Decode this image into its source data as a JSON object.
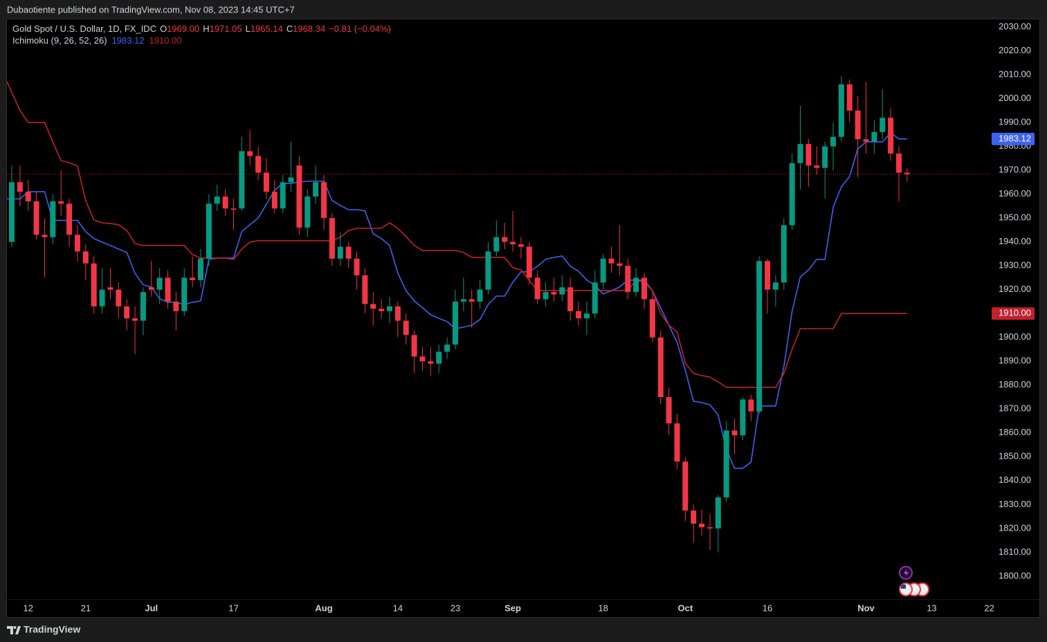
{
  "header": {
    "publisher": "Dubaotiente published on TradingView.com, Nov 08, 2023 14:45 UTC+7"
  },
  "footer": {
    "brand": "TradingView"
  },
  "chart_data": {
    "type": "candlestick",
    "symbol": "Gold Spot / U.S. Dollar, 1D, FX_IDC",
    "ohlc_legend": [
      {
        "key": "O",
        "value": "1969.00"
      },
      {
        "key": "H",
        "value": "1971.05"
      },
      {
        "key": "L",
        "value": "1965.14"
      },
      {
        "key": "C",
        "value": "1968.34"
      }
    ],
    "change": "−0.81 (−0.04%)",
    "up_color": "#089981",
    "down_color": "#f23645",
    "categories": [
      null,
      null,
      "12",
      null,
      null,
      null,
      null,
      null,
      null,
      "21",
      null,
      null,
      null,
      null,
      null,
      null,
      null,
      "Jul",
      null,
      null,
      null,
      null,
      null,
      null,
      null,
      null,
      null,
      "17",
      null,
      null,
      null,
      null,
      null,
      null,
      null,
      null,
      null,
      null,
      "Aug",
      null,
      null,
      null,
      null,
      null,
      null,
      null,
      null,
      "14",
      null,
      null,
      null,
      null,
      null,
      null,
      "23",
      null,
      null,
      null,
      null,
      null,
      null,
      "Sep",
      null,
      null,
      null,
      null,
      null,
      null,
      null,
      null,
      null,
      null,
      "18",
      null,
      null,
      null,
      null,
      null,
      null,
      null,
      null,
      null,
      "Oct",
      null,
      null,
      null,
      null,
      null,
      null,
      null,
      null,
      null,
      "16",
      null,
      null,
      null,
      null,
      null,
      null,
      null,
      null,
      null,
      null,
      null,
      "Nov",
      null,
      null,
      null,
      null,
      null,
      null,
      null,
      "13",
      null,
      null,
      null,
      null,
      null,
      null,
      "22"
    ],
    "open": [
      1940,
      1965,
      1961,
      1957,
      1943,
      1942,
      1957,
      1956,
      1943,
      1936,
      1931,
      1913,
      1921,
      1920,
      1913,
      1908,
      1907,
      1921,
      1920,
      1925,
      1915,
      1911,
      1925,
      1924,
      1933,
      1956,
      1959,
      1954,
      1954,
      1978,
      1976,
      1969,
      1961,
      1954,
      1965,
      1972,
      1946,
      1959,
      1965,
      1950,
      1933,
      1938,
      1933,
      1926,
      1914,
      1912,
      1911,
      1913,
      1907,
      1901,
      1892,
      1890,
      1889,
      1894,
      1897,
      1915,
      1916,
      1915,
      1920,
      1936,
      1942,
      1940,
      1939,
      1938,
      1925,
      1916,
      1919,
      1918,
      1921,
      1911,
      1908,
      1910,
      1923,
      1933,
      1931,
      1930,
      1919,
      1925,
      1916,
      1900,
      1875,
      1864,
      1848,
      1827.5,
      1822,
      1820.5,
      1820,
      1833,
      1861,
      1859,
      1874,
      1869,
      1932,
      1920,
      1923,
      1947,
      1973,
      1981,
      1972,
      1971,
      1980,
      1984,
      2006,
      1995,
      1983,
      1982,
      1986,
      1992,
      1977,
      1969,
      null,
      null,
      null,
      null,
      null,
      null,
      null,
      null,
      null,
      null
    ],
    "high": [
      1972,
      1972,
      1966,
      1961,
      1950,
      1960,
      1970,
      1958,
      1947,
      1939,
      1934,
      1929,
      1929,
      1923,
      1916,
      1913,
      1921,
      1932,
      1929,
      1928,
      1919,
      1929,
      1934,
      1937,
      1960,
      1964,
      1962,
      1958,
      1984,
      1987,
      1980,
      1975,
      1966,
      1968,
      1982,
      1976,
      1962,
      1972,
      1968,
      1952,
      1944,
      1940,
      1936,
      1929,
      1919,
      1916,
      1917,
      1915,
      1910,
      1903,
      1896,
      1896,
      1897,
      1900,
      1920,
      1925,
      1920,
      1924,
      1940,
      1949,
      1948,
      1953,
      1942,
      1940,
      1928,
      1923,
      1925,
      1926,
      1925,
      1915,
      1915,
      1928,
      1935,
      1938,
      1947,
      1933,
      1929,
      1927,
      1919,
      1903,
      1879,
      1868,
      1850,
      1830,
      1828,
      1826,
      1834,
      1865,
      1866,
      1875,
      1876,
      1934,
      1933,
      1926,
      1950,
      1977,
      1997,
      1983,
      1980,
      1982,
      1990,
      2009.5,
      2008,
      2001,
      2007,
      1991,
      2004,
      1996,
      1980,
      1971.05,
      null,
      null,
      null,
      null,
      null,
      null,
      null,
      null,
      null,
      null
    ],
    "low": [
      1938,
      1955,
      1953,
      1941,
      1925,
      1939,
      1951,
      1938,
      1932,
      1924,
      1910,
      1910,
      1916,
      1908,
      1903,
      1893,
      1901,
      1917,
      1914,
      1912,
      1903,
      1909,
      1921,
      1921,
      1930,
      1953,
      1951,
      1945,
      1953,
      1972,
      1966,
      1958,
      1952,
      1952,
      1961,
      1943,
      1942,
      1956,
      1945,
      1930,
      1930,
      1929,
      1920,
      1910,
      1905,
      1908,
      1906,
      1900,
      1897,
      1885,
      1886,
      1884,
      1885,
      1891,
      1895,
      1911,
      1904,
      1912,
      1918,
      1934,
      1937,
      1936,
      1933,
      1922,
      1914,
      1913,
      1915,
      1915,
      1907,
      1905,
      1901,
      1908,
      1920,
      1927,
      1926,
      1916,
      1917,
      1912,
      1898,
      1872,
      1859,
      1845,
      1823,
      1814,
      1817,
      1811,
      1810,
      1831,
      1851,
      1857,
      1865,
      1868,
      1910,
      1913,
      1920,
      1945,
      1962,
      1963,
      1968,
      1958,
      1970,
      1982,
      1990,
      1967,
      1977,
      1977,
      1983,
      1974,
      1957,
      1965.14,
      null,
      null,
      null,
      null,
      null,
      null,
      null,
      null,
      null,
      null
    ],
    "close": [
      1965,
      1961,
      1957,
      1943,
      1942,
      1957,
      1956,
      1943,
      1936,
      1931,
      1913,
      1920,
      1920,
      1913,
      1908,
      1907,
      1919,
      1920,
      1925,
      1915,
      1911,
      1925,
      1924,
      1933,
      1956,
      1959,
      1954,
      1953.5,
      1978,
      1976,
      1969,
      1961,
      1954,
      1965,
      1967,
      1946,
      1959,
      1965,
      1950,
      1933,
      1938,
      1933,
      1926,
      1914,
      1912,
      1911,
      1913,
      1907,
      1901,
      1892,
      1890,
      1889,
      1894,
      1897,
      1915,
      1916,
      1915,
      1920,
      1936,
      1942,
      1940,
      1939,
      1938,
      1925,
      1916,
      1919,
      1918,
      1921,
      1911,
      1908,
      1910,
      1923,
      1933,
      1931,
      1930,
      1919,
      1925,
      1916,
      1900,
      1875,
      1864,
      1848,
      1827.5,
      1822,
      1820.5,
      1820,
      1833,
      1861,
      1859,
      1874,
      1869,
      1932,
      1920,
      1923,
      1947,
      1973,
      1981,
      1972,
      1971,
      1980,
      1984,
      2006,
      1995,
      1983,
      1982,
      1986,
      1992,
      1977,
      1969,
      1968.34,
      null,
      null,
      null,
      null,
      null,
      null,
      null,
      null,
      null,
      null
    ],
    "ylim": [
      1790.4,
      2033.2
    ],
    "yticks": [
      {
        "value": 1800,
        "label": "1800.00"
      },
      {
        "value": 1810,
        "label": "1810.00"
      },
      {
        "value": 1820,
        "label": "1820.00"
      },
      {
        "value": 1830,
        "label": "1830.00"
      },
      {
        "value": 1840,
        "label": "1840.00"
      },
      {
        "value": 1850,
        "label": "1850.00"
      },
      {
        "value": 1860,
        "label": "1860.00"
      },
      {
        "value": 1870,
        "label": "1870.00"
      },
      {
        "value": 1880,
        "label": "1880.00"
      },
      {
        "value": 1890,
        "label": "1890.00"
      },
      {
        "value": 1900,
        "label": "1900.00"
      },
      {
        "value": 1910,
        "label": "1910.00"
      },
      {
        "value": 1920,
        "label": "1920.00"
      },
      {
        "value": 1930,
        "label": "1930.00"
      },
      {
        "value": 1940,
        "label": "1940.00"
      },
      {
        "value": 1950,
        "label": "1950.00"
      },
      {
        "value": 1960,
        "label": "1960.00"
      },
      {
        "value": 1970,
        "label": "1970.00"
      },
      {
        "value": 1980,
        "label": "1980.00"
      },
      {
        "value": 1990,
        "label": "1990.00"
      },
      {
        "value": 2000,
        "label": "2000.00"
      },
      {
        "value": 2010,
        "label": "2010.00"
      },
      {
        "value": 2020,
        "label": "2020.00"
      },
      {
        "value": 2030,
        "label": "2030.00"
      }
    ],
    "grid": false,
    "last_price_line": true,
    "indicator": {
      "label": "Ichimoku (9, 26, 52, 26)",
      "lines": [
        {
          "color": "#3d63f0",
          "legend_value": "1983.12",
          "values": [
            1958,
            1958,
            1961,
            1961,
            1961,
            1949,
            1949,
            1949,
            1949,
            1944.3,
            1941.4,
            1939.9,
            1938.5,
            1937,
            1935.6,
            1926.9,
            1922,
            1921.1,
            1916.2,
            1914.7,
            1914.7,
            1913.8,
            1914.7,
            1915.3,
            1932.7,
            1933.2,
            1933.2,
            1933.2,
            1944.3,
            1947.2,
            1950,
            1955.8,
            1961.6,
            1964.5,
            1964.5,
            1965.1,
            1965.4,
            1965.4,
            1965.4,
            1957.3,
            1955.3,
            1953.5,
            1953.5,
            1953,
            1943.4,
            1941.4,
            1938.5,
            1926.9,
            1919.6,
            1915.3,
            1912.4,
            1909.5,
            1908,
            1906.6,
            1903.7,
            1904.3,
            1905.1,
            1907.5,
            1913.8,
            1917.3,
            1917.3,
            1923.1,
            1927.5,
            1927.5,
            1929.8,
            1932.7,
            1933.5,
            1934.1,
            1929.8,
            1927.7,
            1924,
            1921.9,
            1918.2,
            1919.6,
            1921.1,
            1924,
            1924,
            1924,
            1919.6,
            1912.4,
            1905.1,
            1897.9,
            1886.3,
            1873.3,
            1872.7,
            1871.8,
            1867.5,
            1853,
            1845.2,
            1845.2,
            1847.8,
            1871.3,
            1871.3,
            1871.3,
            1887.8,
            1910.9,
            1925.4,
            1928.3,
            1932.7,
            1932.7,
            1954.4,
            1963.1,
            1967.4,
            1979,
            1981.9,
            1981.9,
            1981.9,
            1985.7,
            1983.12,
            1983.12,
            null,
            null,
            null,
            null,
            null,
            null,
            null,
            null,
            null,
            null
          ]
        },
        {
          "color": "#c2202d",
          "legend_value": "1910.00",
          "values": [
            2007.1,
            1995,
            1990,
            1990,
            1990,
            1981.9,
            1974.1,
            1973.2,
            1971.8,
            1957.3,
            1949.2,
            1948,
            1947.7,
            1947.2,
            1944.8,
            1939.3,
            1938.5,
            1938.5,
            1938.5,
            1938.5,
            1938.5,
            1938.5,
            1934.7,
            1933.2,
            1933.2,
            1933.2,
            1933.2,
            1932.7,
            1937,
            1939.9,
            1940.5,
            1940.5,
            1940.5,
            1940.5,
            1940.5,
            1940.5,
            1940.5,
            1940.5,
            1940.5,
            1940.5,
            1941.9,
            1944.8,
            1945.7,
            1945.7,
            1945.7,
            1945.7,
            1948,
            1945.7,
            1942.2,
            1938.5,
            1936.4,
            1936.4,
            1936.4,
            1936.4,
            1936.4,
            1935.6,
            1933.5,
            1933.5,
            1933.5,
            1933.5,
            1933.5,
            1929.2,
            1928.3,
            1924,
            1919.6,
            1919.6,
            1919.6,
            1919.6,
            1919.6,
            1919.6,
            1919.6,
            1919.6,
            1919.6,
            1919.6,
            1919.6,
            1919.6,
            1924,
            1923.1,
            1919.6,
            1910.1,
            1905.1,
            1902.2,
            1889.2,
            1884.9,
            1884,
            1883.4,
            1881.4,
            1879.1,
            1879.1,
            1879.1,
            1879.1,
            1879.1,
            1879.1,
            1879.1,
            1884.9,
            1895,
            1903.7,
            1903.7,
            1903.7,
            1903.7,
            1903.7,
            1910,
            1910,
            1910,
            1910,
            1910,
            1910,
            1910,
            1910,
            1910,
            null,
            null,
            null,
            null,
            null,
            null,
            null,
            null,
            null,
            null
          ]
        }
      ]
    }
  }
}
